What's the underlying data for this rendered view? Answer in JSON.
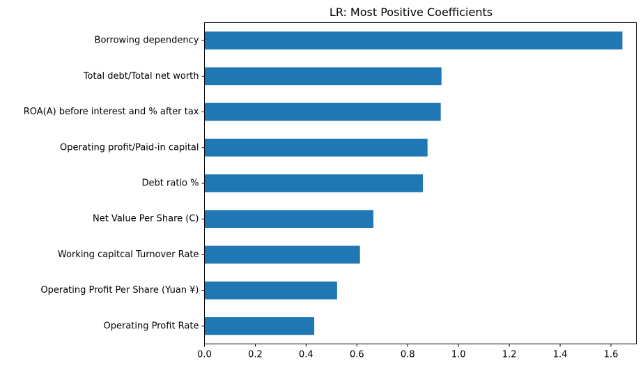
{
  "chart_data": {
    "type": "bar",
    "orientation": "horizontal",
    "title": "LR: Most Positive Coefficients",
    "xlabel": "",
    "ylabel": "",
    "xlim": [
      0,
      1.7
    ],
    "xticks": [
      "0.0",
      "0.2",
      "0.4",
      "0.6",
      "0.8",
      "1.0",
      "1.2",
      "1.4",
      "1.6"
    ],
    "categories": [
      " Borrowing dependency",
      " Total debt/Total net worth",
      " ROA(A) before interest and % after tax",
      " Operating profit/Paid-in capital",
      " Debt ratio %",
      " Net Value Per Share (C)",
      " Working capitcal Turnover Rate",
      " Operating Profit Per Share (Yuan ¥)",
      " Operating Profit Rate"
    ],
    "values": [
      1.645,
      0.933,
      0.93,
      0.878,
      0.86,
      0.665,
      0.612,
      0.522,
      0.432
    ],
    "bar_color": "#1f77b4",
    "grid": false,
    "legend": "none"
  }
}
